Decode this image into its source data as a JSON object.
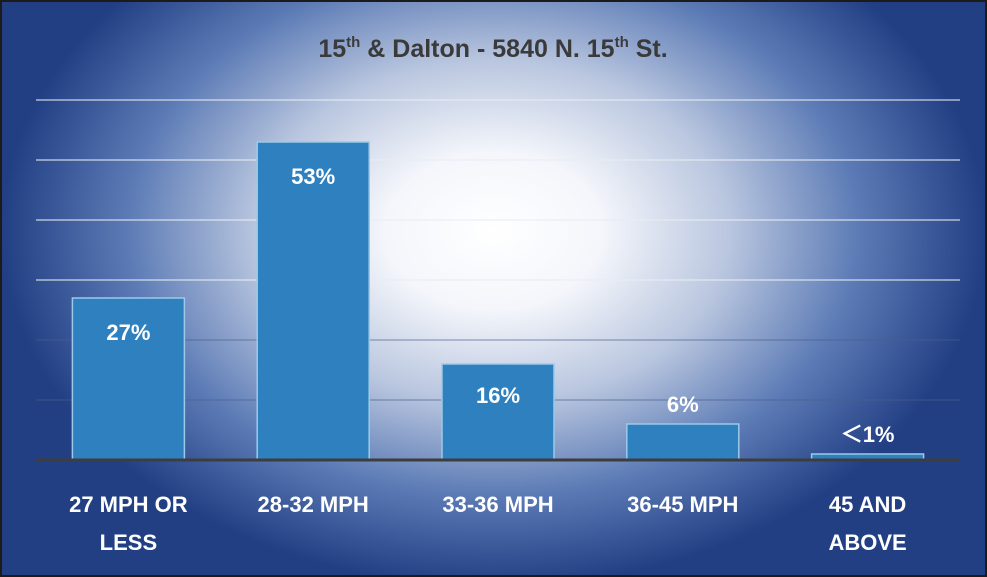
{
  "chart_data": {
    "type": "bar",
    "title_parts": [
      {
        "text": "15",
        "sup": false
      },
      {
        "text": "th",
        "sup": true
      },
      {
        "text": " & Dalton - 5840 N. 15",
        "sup": false
      },
      {
        "text": "th",
        "sup": true
      },
      {
        "text": " St.",
        "sup": false
      }
    ],
    "categories": [
      [
        "27 MPH OR",
        "LESS"
      ],
      [
        "28-32 MPH"
      ],
      [
        "33-36 MPH"
      ],
      [
        "36-45 MPH"
      ],
      [
        "45 AND",
        "ABOVE"
      ]
    ],
    "values": [
      27,
      53,
      16,
      6,
      1
    ],
    "value_labels": [
      "27%",
      "53%",
      "16%",
      "6%",
      "＜1%"
    ],
    "ylim": [
      0,
      60
    ],
    "grid": true,
    "legend": "none",
    "colors": {
      "bar": "#2f80bf",
      "bar_edge": "#9cc9ea",
      "label": "#ffffff",
      "title": "#3a3a3a",
      "axis": "#3d3d3d",
      "grid": "#e8ecf3"
    }
  }
}
